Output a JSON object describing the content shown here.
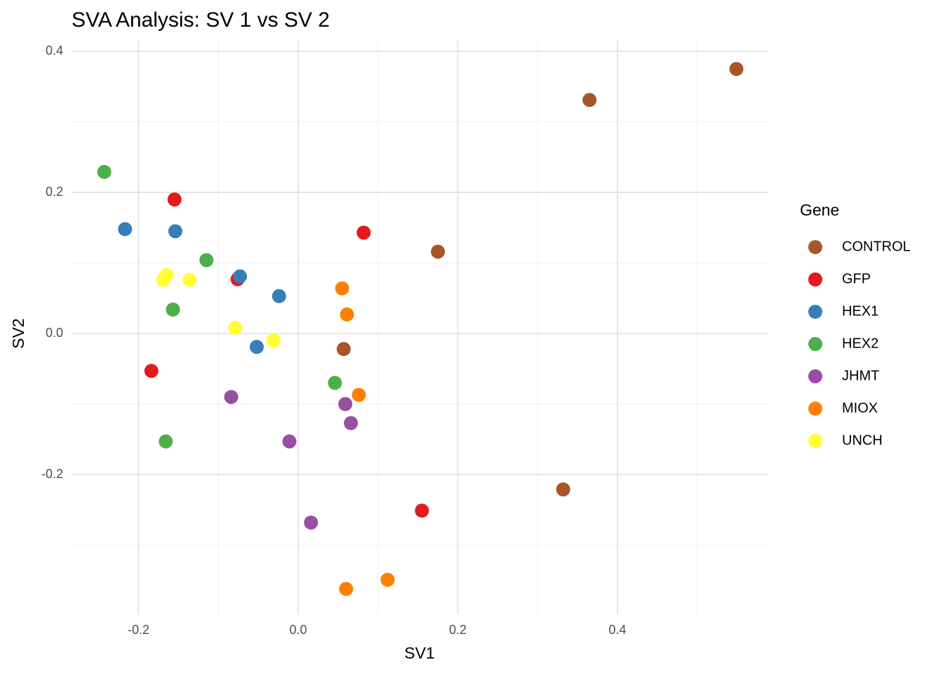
{
  "chart_data": {
    "type": "scatter",
    "title": "SVA Analysis: SV 1  vs SV 2",
    "x_label": "SV1",
    "y_label": "SV2",
    "legend_title": "Gene",
    "legend": "right",
    "grid": true,
    "xlim": [
      -0.284,
      0.589
    ],
    "ylim": [
      -0.398,
      0.415
    ],
    "xticks": [
      -0.2,
      {
        "value": 0,
        "label": "0.0"
      },
      0.2,
      0.4
    ],
    "yticks": [
      -0.2,
      {
        "value": 0,
        "label": "0.0"
      },
      0.2,
      0.4
    ],
    "xminor": [
      -0.1,
      0.1,
      0.3,
      0.5
    ],
    "yminor": [
      -0.3,
      -0.1,
      0.1,
      0.3
    ],
    "series": [
      {
        "name": "CONTROL",
        "color": "#A65628",
        "x": [
          0.549,
          0.365,
          0.175,
          0.057,
          0.332
        ],
        "values": [
          0.375,
          0.331,
          0.116,
          -0.022,
          -0.221
        ]
      },
      {
        "name": "GFP",
        "color": "#E41A1C",
        "x": [
          -0.155,
          0.082,
          -0.076,
          -0.184,
          0.155
        ],
        "values": [
          0.19,
          0.143,
          0.077,
          -0.053,
          -0.251
        ]
      },
      {
        "name": "HEX1",
        "color": "#377EB8",
        "x": [
          -0.217,
          -0.154,
          -0.073,
          -0.024,
          -0.052
        ],
        "values": [
          0.148,
          0.145,
          0.081,
          0.053,
          -0.019
        ]
      },
      {
        "name": "HEX2",
        "color": "#4DAF4A",
        "x": [
          -0.243,
          -0.115,
          -0.157,
          0.046,
          -0.166
        ],
        "values": [
          0.229,
          0.104,
          0.034,
          -0.07,
          -0.153
        ]
      },
      {
        "name": "JHMT",
        "color": "#984EA3",
        "x": [
          -0.084,
          0.059,
          0.066,
          -0.011,
          0.016
        ],
        "values": [
          -0.09,
          -0.1,
          -0.127,
          -0.153,
          -0.268
        ]
      },
      {
        "name": "MIOX",
        "color": "#FF7F00",
        "x": [
          0.055,
          0.061,
          0.076,
          0.112,
          0.06
        ],
        "values": [
          0.064,
          0.027,
          -0.087,
          -0.349,
          -0.362
        ]
      },
      {
        "name": "UNCH",
        "color": "#FFFF33",
        "x": [
          -0.165,
          -0.169,
          -0.136,
          -0.079,
          -0.031
        ],
        "values": [
          0.083,
          0.076,
          0.076,
          0.008,
          -0.01
        ]
      }
    ]
  }
}
